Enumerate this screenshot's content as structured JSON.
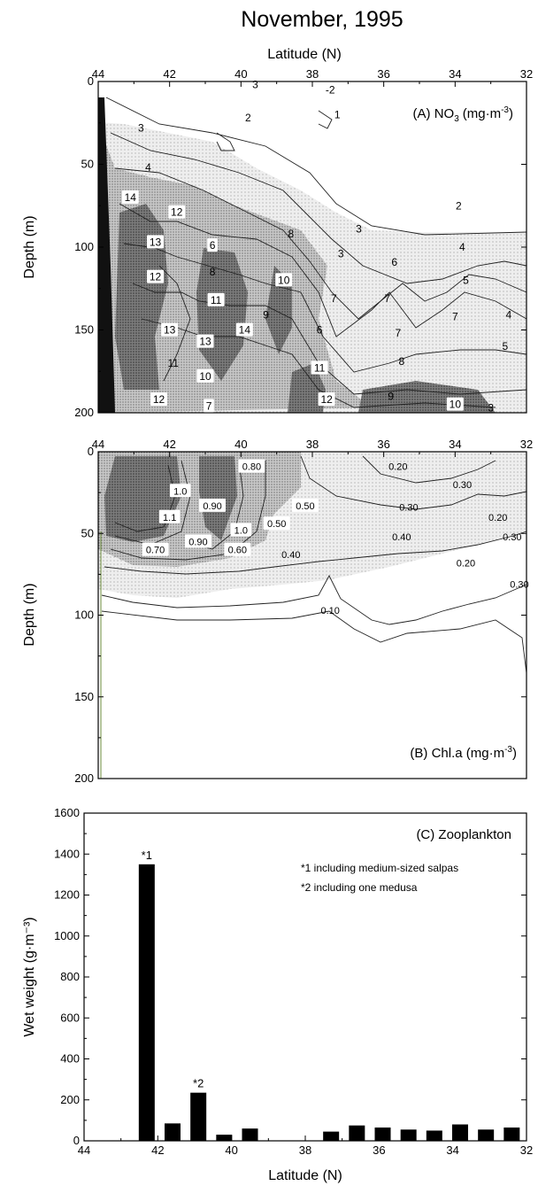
{
  "figure_title": "November, 1995",
  "chart_data": [
    {
      "type": "heatmap",
      "panel_title": "(A) NO3 (mg·m⁻³)",
      "title_parts": {
        "prefix": "(A) NO",
        "sub": "3",
        "unit": "(mg·m",
        "sup": "-3",
        "close": ")"
      },
      "xlabel_top": "Latitude (N)",
      "xlabel": "",
      "ylabel": "Depth (m)",
      "xlim": [
        44,
        32
      ],
      "ylim": [
        0,
        200
      ],
      "xticks": [
        "44",
        "42",
        "40",
        "38",
        "36",
        "34",
        "32"
      ],
      "yticks": [
        "0",
        "50",
        "100",
        "150",
        "200"
      ],
      "contour_labels": [
        {
          "text": "3",
          "lat": 42.8,
          "depth": 28,
          "boxed": false
        },
        {
          "text": "3",
          "lat": 39.6,
          "depth": 2,
          "boxed": false
        },
        {
          "text": "-2",
          "lat": 37.5,
          "depth": 5,
          "boxed": false
        },
        {
          "text": "1",
          "lat": 37.3,
          "depth": 20,
          "boxed": false
        },
        {
          "text": "2",
          "lat": 39.8,
          "depth": 22,
          "boxed": false
        },
        {
          "text": "4",
          "lat": 42.6,
          "depth": 52,
          "boxed": false
        },
        {
          "text": "14",
          "lat": 43.1,
          "depth": 70,
          "boxed": true
        },
        {
          "text": "12",
          "lat": 41.8,
          "depth": 79,
          "boxed": true
        },
        {
          "text": "2",
          "lat": 33.9,
          "depth": 75,
          "boxed": false
        },
        {
          "text": "3",
          "lat": 36.7,
          "depth": 89,
          "boxed": false
        },
        {
          "text": "8",
          "lat": 38.6,
          "depth": 92,
          "boxed": false
        },
        {
          "text": "3",
          "lat": 37.2,
          "depth": 104,
          "boxed": false
        },
        {
          "text": "13",
          "lat": 42.4,
          "depth": 97,
          "boxed": true
        },
        {
          "text": "6",
          "lat": 40.8,
          "depth": 99,
          "boxed": true
        },
        {
          "text": "4",
          "lat": 33.8,
          "depth": 100,
          "boxed": false
        },
        {
          "text": "6",
          "lat": 35.7,
          "depth": 109,
          "boxed": false
        },
        {
          "text": "12",
          "lat": 42.4,
          "depth": 118,
          "boxed": true
        },
        {
          "text": "8",
          "lat": 40.8,
          "depth": 115,
          "boxed": false
        },
        {
          "text": "10",
          "lat": 38.8,
          "depth": 120,
          "boxed": true
        },
        {
          "text": "5",
          "lat": 33.7,
          "depth": 120,
          "boxed": false
        },
        {
          "text": "11",
          "lat": 40.7,
          "depth": 132,
          "boxed": true
        },
        {
          "text": "7",
          "lat": 37.4,
          "depth": 131,
          "boxed": false
        },
        {
          "text": "7",
          "lat": 35.9,
          "depth": 131,
          "boxed": false
        },
        {
          "text": "9",
          "lat": 39.3,
          "depth": 141,
          "boxed": false
        },
        {
          "text": "4",
          "lat": 32.5,
          "depth": 141,
          "boxed": false
        },
        {
          "text": "7",
          "lat": 34.0,
          "depth": 142,
          "boxed": false
        },
        {
          "text": "13",
          "lat": 42.0,
          "depth": 150,
          "boxed": true
        },
        {
          "text": "14",
          "lat": 39.9,
          "depth": 150,
          "boxed": true
        },
        {
          "text": "6",
          "lat": 37.8,
          "depth": 150,
          "boxed": false
        },
        {
          "text": "7",
          "lat": 35.6,
          "depth": 152,
          "boxed": false
        },
        {
          "text": "13",
          "lat": 41.0,
          "depth": 157,
          "boxed": true
        },
        {
          "text": "5",
          "lat": 32.6,
          "depth": 160,
          "boxed": false
        },
        {
          "text": "11",
          "lat": 41.9,
          "depth": 170,
          "boxed": false
        },
        {
          "text": "8",
          "lat": 35.5,
          "depth": 169,
          "boxed": false
        },
        {
          "text": "11",
          "lat": 37.8,
          "depth": 173,
          "boxed": true
        },
        {
          "text": "10",
          "lat": 41.0,
          "depth": 178,
          "boxed": true
        },
        {
          "text": "12",
          "lat": 42.3,
          "depth": 192,
          "boxed": true
        },
        {
          "text": "12",
          "lat": 37.6,
          "depth": 192,
          "boxed": true
        },
        {
          "text": "9",
          "lat": 35.8,
          "depth": 190,
          "boxed": false
        },
        {
          "text": "10",
          "lat": 34.0,
          "depth": 195,
          "boxed": true
        },
        {
          "text": "7",
          "lat": 40.9,
          "depth": 196,
          "boxed": true
        },
        {
          "text": "3",
          "lat": 33.0,
          "depth": 197,
          "boxed": false
        }
      ]
    },
    {
      "type": "heatmap",
      "panel_title": "(B) Chl.a (mg·m⁻³)",
      "title_parts": {
        "prefix": "(B) Chl.a (mg·m",
        "sup": "-3",
        "close": ")"
      },
      "xlabel": "",
      "ylabel": "Depth (m)",
      "xlim": [
        44,
        32
      ],
      "ylim": [
        0,
        200
      ],
      "xticks": [
        "44",
        "42",
        "40",
        "38",
        "36",
        "34",
        "32"
      ],
      "yticks": [
        "0",
        "50",
        "100",
        "150",
        "200"
      ],
      "contour_labels": [
        {
          "text": "0.80",
          "lat": 39.7,
          "depth": 9,
          "boxed": true
        },
        {
          "text": "0.20",
          "lat": 35.6,
          "depth": 9,
          "boxed": false
        },
        {
          "text": "1.0",
          "lat": 41.7,
          "depth": 24,
          "boxed": true
        },
        {
          "text": "0.30",
          "lat": 33.8,
          "depth": 20,
          "boxed": false
        },
        {
          "text": "0.90",
          "lat": 40.8,
          "depth": 33,
          "boxed": true
        },
        {
          "text": "0.50",
          "lat": 38.2,
          "depth": 33,
          "boxed": true
        },
        {
          "text": "0.30",
          "lat": 35.3,
          "depth": 34,
          "boxed": false
        },
        {
          "text": "0.20",
          "lat": 32.8,
          "depth": 40,
          "boxed": false
        },
        {
          "text": "1.1",
          "lat": 42.0,
          "depth": 40,
          "boxed": true
        },
        {
          "text": "0.50",
          "lat": 39.0,
          "depth": 44,
          "boxed": true
        },
        {
          "text": "1.0",
          "lat": 40.0,
          "depth": 48,
          "boxed": true
        },
        {
          "text": "0.40",
          "lat": 35.5,
          "depth": 52,
          "boxed": false
        },
        {
          "text": "0.30",
          "lat": 32.4,
          "depth": 52,
          "boxed": false
        },
        {
          "text": "0.90",
          "lat": 41.2,
          "depth": 55,
          "boxed": true
        },
        {
          "text": "0.70",
          "lat": 42.4,
          "depth": 60,
          "boxed": true
        },
        {
          "text": "0.60",
          "lat": 40.1,
          "depth": 60,
          "boxed": true
        },
        {
          "text": "0.40",
          "lat": 38.6,
          "depth": 63,
          "boxed": false
        },
        {
          "text": "0.20",
          "lat": 33.7,
          "depth": 68,
          "boxed": false
        },
        {
          "text": "0.30",
          "lat": 32.2,
          "depth": 81,
          "boxed": false
        },
        {
          "text": "0.10",
          "lat": 37.5,
          "depth": 97,
          "boxed": false
        }
      ]
    },
    {
      "type": "bar",
      "panel_title": "(C) Zooplankton",
      "xlabel": "Latitude (N)",
      "ylabel": "Wet weight (g·m⁻³)",
      "xlim": [
        44,
        32
      ],
      "ylim": [
        0,
        1600
      ],
      "xticks": [
        "44",
        "42",
        "40",
        "38",
        "36",
        "34",
        "32"
      ],
      "yticks": [
        "0",
        "200",
        "400",
        "600",
        "800",
        "1000",
        "1200",
        "1400",
        "1600"
      ],
      "x": [
        42.3,
        41.6,
        40.9,
        40.2,
        39.5,
        37.3,
        36.6,
        35.9,
        35.2,
        34.5,
        33.8,
        33.1,
        32.4
      ],
      "values": [
        1350,
        85,
        235,
        30,
        60,
        45,
        75,
        65,
        55,
        50,
        80,
        55,
        65
      ],
      "bar_annotations": [
        {
          "text": "*1",
          "bar_index": 0
        },
        {
          "text": "*2",
          "bar_index": 2
        }
      ],
      "notes": [
        "*1 including medium-sized salpas",
        "*2 including one medusa"
      ]
    }
  ]
}
